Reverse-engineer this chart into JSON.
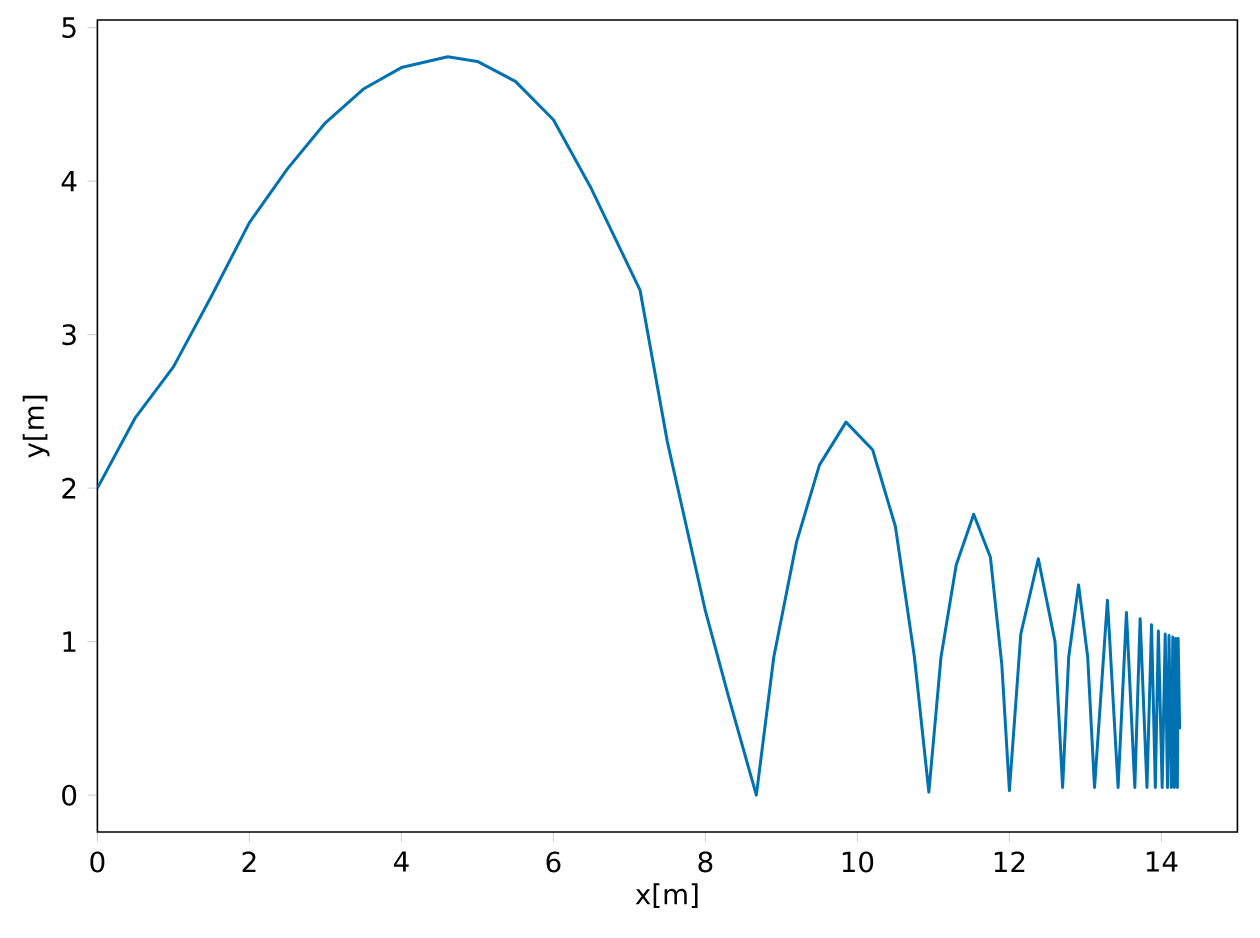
{
  "chart_data": {
    "type": "line",
    "xlabel": "x[m]",
    "ylabel": "y[m]",
    "xlim": [
      0,
      15
    ],
    "ylim": [
      -0.24,
      5.05
    ],
    "xticks": [
      0,
      2,
      4,
      6,
      8,
      10,
      12,
      14
    ],
    "yticks": [
      0,
      1,
      2,
      3,
      4,
      5
    ],
    "series": [
      {
        "color": "#0072b2",
        "x": [
          0,
          0.5,
          1.0,
          1.5,
          2.0,
          2.5,
          3.0,
          3.5,
          4.0,
          4.61,
          5.0,
          5.5,
          6.0,
          6.5,
          7.14,
          7.5,
          8.0,
          8.3,
          8.67,
          8.9,
          9.2,
          9.5,
          9.85,
          10.2,
          10.5,
          10.75,
          10.94,
          11.1,
          11.3,
          11.53,
          11.75,
          11.9,
          12.0,
          12.15,
          12.38,
          12.6,
          12.7,
          12.78,
          12.91,
          13.03,
          13.12,
          13.29,
          13.43,
          13.54,
          13.65,
          13.72,
          13.81,
          13.87,
          13.92,
          13.96,
          14.01,
          14.05,
          14.08,
          14.1,
          14.13,
          14.15,
          14.17,
          14.19,
          14.21,
          14.22,
          14.24
        ],
        "values": [
          2.0,
          2.46,
          2.79,
          3.25,
          3.73,
          4.08,
          4.38,
          4.6,
          4.74,
          4.81,
          4.78,
          4.65,
          4.4,
          3.95,
          3.29,
          2.3,
          1.2,
          0.65,
          0.0,
          0.9,
          1.65,
          2.15,
          2.43,
          2.25,
          1.75,
          0.9,
          0.02,
          0.9,
          1.5,
          1.83,
          1.55,
          0.85,
          0.03,
          1.05,
          1.54,
          1.0,
          0.05,
          0.9,
          1.37,
          0.9,
          0.05,
          1.27,
          0.05,
          1.19,
          0.05,
          1.15,
          0.05,
          1.11,
          0.05,
          1.07,
          0.05,
          1.05,
          0.05,
          1.04,
          0.05,
          1.03,
          0.05,
          1.02,
          0.05,
          1.02,
          0.43
        ]
      }
    ]
  }
}
